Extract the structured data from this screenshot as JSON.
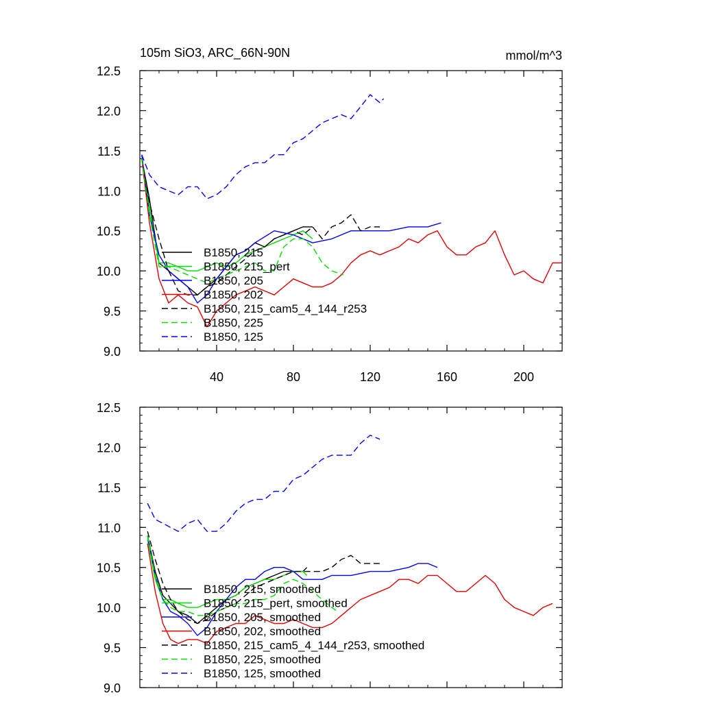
{
  "chart_data": [
    {
      "type": "line",
      "title": "105m SiO3, ARC_66N-90N",
      "units": "mmol/m^3",
      "xlim": [
        0,
        220
      ],
      "ylim": [
        9.0,
        12.5
      ],
      "x_ticks": [
        40,
        80,
        120,
        160,
        200
      ],
      "x_tick_labels": [
        "40",
        "80",
        "120",
        "160",
        "200"
      ],
      "y_ticks": [
        9.0,
        9.5,
        10.0,
        10.5,
        11.0,
        11.5,
        12.0,
        12.5
      ],
      "y_tick_labels": [
        "9.0",
        "9.5",
        "10.0",
        "10.5",
        "11.0",
        "11.5",
        "12.0",
        "12.5"
      ],
      "legend_position": "lower-left",
      "series": [
        {
          "name": "B1850, 215",
          "color": "#000000",
          "dash": "solid",
          "x": [
            1,
            5,
            10,
            15,
            20,
            25,
            30,
            35,
            40,
            45,
            50,
            55,
            60,
            65,
            70,
            75,
            80,
            85,
            90
          ],
          "y": [
            11.4,
            10.9,
            10.1,
            10.0,
            9.9,
            9.8,
            9.7,
            9.8,
            9.9,
            10.05,
            10.2,
            10.25,
            10.35,
            10.3,
            10.4,
            10.45,
            10.5,
            10.55,
            10.55
          ]
        },
        {
          "name": "B1850, 215_pert",
          "color": "#00dd00",
          "dash": "solid",
          "x": [
            1,
            5,
            10,
            15,
            20,
            25,
            30,
            35,
            40,
            45,
            50,
            55,
            60,
            65,
            70,
            75,
            80,
            85,
            90
          ],
          "y": [
            11.4,
            10.8,
            10.1,
            10.1,
            10.05,
            10.0,
            10.0,
            10.05,
            10.1,
            10.05,
            10.1,
            10.2,
            10.25,
            10.3,
            10.35,
            10.4,
            10.45,
            10.5,
            10.4
          ]
        },
        {
          "name": "B1850, 205",
          "color": "#0000ff",
          "dash": "solid",
          "x": [
            1,
            5,
            10,
            15,
            20,
            25,
            30,
            35,
            40,
            45,
            50,
            55,
            60,
            70,
            80,
            90,
            100,
            110,
            120,
            130,
            140,
            150,
            157
          ],
          "y": [
            11.45,
            10.7,
            10.2,
            10.0,
            9.9,
            9.8,
            9.6,
            9.7,
            9.9,
            10.05,
            10.2,
            10.25,
            10.35,
            10.5,
            10.45,
            10.35,
            10.4,
            10.5,
            10.5,
            10.5,
            10.55,
            10.55,
            10.6
          ]
        },
        {
          "name": "B1850, 202",
          "color": "#e00000",
          "dash": "solid",
          "x": [
            1,
            5,
            10,
            15,
            20,
            25,
            30,
            35,
            40,
            45,
            50,
            55,
            60,
            65,
            70,
            75,
            80,
            85,
            90,
            95,
            100,
            105,
            110,
            115,
            120,
            125,
            130,
            135,
            140,
            145,
            150,
            155,
            160,
            165,
            170,
            175,
            180,
            185,
            190,
            195,
            200,
            205,
            210,
            215,
            220
          ],
          "y": [
            11.4,
            10.6,
            9.9,
            9.6,
            9.7,
            9.6,
            9.55,
            9.3,
            9.5,
            9.6,
            9.7,
            9.75,
            9.8,
            9.75,
            9.7,
            9.8,
            9.9,
            9.85,
            9.8,
            9.8,
            9.85,
            9.95,
            10.1,
            10.2,
            10.25,
            10.2,
            10.25,
            10.3,
            10.4,
            10.35,
            10.45,
            10.5,
            10.3,
            10.2,
            10.2,
            10.3,
            10.35,
            10.5,
            10.2,
            9.95,
            10.0,
            9.9,
            9.85,
            10.1,
            10.1
          ]
        },
        {
          "name": "B1850, 215_cam5_4_144_r253",
          "color": "#000000",
          "dash": "dashed",
          "x": [
            1,
            5,
            10,
            15,
            20,
            25,
            30,
            35,
            40,
            45,
            50,
            55,
            60,
            65,
            70,
            75,
            80,
            85,
            90,
            95,
            100,
            105,
            110,
            115,
            120,
            125
          ],
          "y": [
            11.4,
            10.85,
            10.4,
            10.0,
            9.75,
            9.7,
            9.7,
            9.8,
            9.85,
            9.95,
            10.05,
            10.15,
            10.25,
            10.3,
            10.4,
            10.45,
            10.5,
            10.45,
            10.55,
            10.4,
            10.55,
            10.6,
            10.7,
            10.5,
            10.55,
            10.55
          ]
        },
        {
          "name": "B1850, 225",
          "color": "#00dd00",
          "dash": "dashed",
          "x": [
            1,
            5,
            10,
            15,
            20,
            25,
            30,
            35,
            40,
            45,
            50,
            55,
            60,
            65,
            70,
            75,
            80,
            85,
            90,
            95,
            100,
            106
          ],
          "y": [
            11.4,
            10.7,
            10.05,
            10.05,
            10.0,
            9.95,
            9.9,
            9.85,
            9.9,
            9.95,
            10.0,
            10.05,
            10.1,
            10.0,
            10.0,
            10.3,
            10.4,
            10.4,
            10.3,
            10.1,
            10.0,
            9.95
          ]
        },
        {
          "name": "B1850, 125",
          "color": "#0000ff",
          "dash": "dashed",
          "x": [
            1,
            5,
            10,
            15,
            20,
            25,
            30,
            35,
            40,
            45,
            50,
            55,
            60,
            65,
            70,
            75,
            80,
            85,
            90,
            95,
            100,
            105,
            110,
            115,
            120,
            125,
            127
          ],
          "y": [
            11.45,
            11.2,
            11.05,
            11.0,
            10.95,
            11.05,
            11.05,
            10.9,
            10.95,
            11.05,
            11.2,
            11.3,
            11.35,
            11.35,
            11.45,
            11.45,
            11.6,
            11.65,
            11.75,
            11.85,
            11.9,
            11.95,
            11.9,
            12.05,
            12.2,
            12.1,
            12.15
          ]
        }
      ]
    },
    {
      "type": "line",
      "title": "",
      "xlim": [
        0,
        220
      ],
      "ylim": [
        9.0,
        12.5
      ],
      "x_ticks": [
        40,
        80,
        120,
        160,
        200
      ],
      "y_ticks": [
        9.0,
        9.5,
        10.0,
        10.5,
        11.0,
        11.5,
        12.0,
        12.5
      ],
      "y_tick_labels": [
        "9.0",
        "9.5",
        "10.0",
        "10.5",
        "11.0",
        "11.5",
        "12.0",
        "12.5"
      ],
      "legend_position": "lower-left",
      "series": [
        {
          "name": "B1850, 215, smoothed",
          "color": "#000000",
          "dash": "solid",
          "x": [
            4,
            8,
            12,
            16,
            20,
            25,
            30,
            35,
            40,
            45,
            50,
            55,
            60,
            65,
            70,
            75,
            80,
            85,
            87
          ],
          "y": [
            10.9,
            10.45,
            10.15,
            10.05,
            9.95,
            9.9,
            9.8,
            9.9,
            10.0,
            10.1,
            10.15,
            10.25,
            10.3,
            10.35,
            10.4,
            10.45,
            10.45,
            10.45,
            10.5
          ]
        },
        {
          "name": "B1850, 215_pert, smoothed",
          "color": "#00dd00",
          "dash": "solid",
          "x": [
            4,
            8,
            12,
            16,
            20,
            25,
            30,
            35,
            40,
            45,
            50,
            55,
            60,
            65,
            70,
            75,
            80,
            85,
            87
          ],
          "y": [
            10.85,
            10.35,
            10.1,
            10.1,
            10.05,
            10.0,
            10.0,
            10.05,
            10.1,
            10.1,
            10.15,
            10.25,
            10.3,
            10.35,
            10.35,
            10.4,
            10.45,
            10.45,
            10.4
          ]
        },
        {
          "name": "B1850, 205, smoothed",
          "color": "#0000ff",
          "dash": "solid",
          "x": [
            4,
            8,
            12,
            16,
            20,
            25,
            30,
            35,
            40,
            45,
            50,
            55,
            60,
            65,
            70,
            75,
            80,
            85,
            90,
            95,
            100,
            110,
            120,
            130,
            140,
            145,
            150,
            155
          ],
          "y": [
            10.9,
            10.4,
            10.1,
            9.95,
            9.9,
            9.8,
            9.65,
            9.75,
            9.95,
            10.1,
            10.25,
            10.35,
            10.35,
            10.45,
            10.5,
            10.5,
            10.45,
            10.35,
            10.35,
            10.35,
            10.4,
            10.4,
            10.45,
            10.45,
            10.5,
            10.55,
            10.55,
            10.5
          ]
        },
        {
          "name": "B1850, 202, smoothed",
          "color": "#e00000",
          "dash": "solid",
          "x": [
            4,
            8,
            12,
            16,
            20,
            25,
            30,
            35,
            40,
            45,
            50,
            55,
            60,
            65,
            70,
            75,
            80,
            85,
            90,
            95,
            100,
            105,
            110,
            115,
            120,
            125,
            130,
            135,
            140,
            145,
            150,
            155,
            160,
            165,
            170,
            175,
            180,
            185,
            190,
            195,
            200,
            205,
            210,
            215
          ],
          "y": [
            10.8,
            10.2,
            9.8,
            9.6,
            9.55,
            9.6,
            9.6,
            9.55,
            9.7,
            9.75,
            9.8,
            9.8,
            9.9,
            9.85,
            9.8,
            9.8,
            9.85,
            9.8,
            9.75,
            9.75,
            9.8,
            9.9,
            10.0,
            10.1,
            10.15,
            10.2,
            10.25,
            10.35,
            10.35,
            10.3,
            10.4,
            10.4,
            10.3,
            10.2,
            10.2,
            10.3,
            10.4,
            10.3,
            10.1,
            10.0,
            9.95,
            9.9,
            10.0,
            10.05
          ]
        },
        {
          "name": "B1850, 215_cam5_4_144_r253, smoothed",
          "color": "#000000",
          "dash": "dashed",
          "x": [
            4,
            8,
            12,
            16,
            20,
            25,
            30,
            35,
            40,
            45,
            50,
            55,
            60,
            65,
            70,
            75,
            80,
            85,
            90,
            95,
            100,
            105,
            110,
            115,
            120,
            125
          ],
          "y": [
            10.95,
            10.6,
            10.3,
            10.1,
            9.95,
            9.85,
            9.8,
            9.85,
            9.95,
            10.0,
            10.05,
            10.15,
            10.25,
            10.3,
            10.35,
            10.4,
            10.45,
            10.45,
            10.45,
            10.45,
            10.5,
            10.6,
            10.65,
            10.55,
            10.55,
            10.55
          ]
        },
        {
          "name": "B1850, 225, smoothed",
          "color": "#00dd00",
          "dash": "dashed",
          "x": [
            4,
            8,
            12,
            16,
            20,
            25,
            30,
            35,
            40,
            45,
            50,
            55,
            60,
            65,
            70,
            75,
            80,
            85,
            90,
            95,
            100,
            103
          ],
          "y": [
            10.9,
            10.4,
            10.1,
            10.0,
            9.95,
            9.95,
            9.9,
            9.9,
            9.95,
            10.0,
            10.05,
            10.05,
            10.1,
            10.1,
            10.15,
            10.3,
            10.35,
            10.3,
            10.2,
            10.1,
            10.0,
            9.95
          ]
        },
        {
          "name": "B1850, 125, smoothed",
          "color": "#0000ff",
          "dash": "dashed",
          "x": [
            4,
            8,
            12,
            16,
            20,
            25,
            30,
            35,
            40,
            45,
            50,
            55,
            60,
            65,
            70,
            75,
            80,
            85,
            90,
            95,
            100,
            105,
            110,
            115,
            120,
            125
          ],
          "y": [
            11.3,
            11.1,
            11.05,
            11.0,
            10.95,
            11.05,
            11.1,
            10.95,
            10.95,
            11.05,
            11.2,
            11.3,
            11.35,
            11.35,
            11.45,
            11.45,
            11.6,
            11.65,
            11.75,
            11.85,
            11.9,
            11.9,
            11.9,
            12.05,
            12.15,
            12.1
          ]
        }
      ]
    }
  ]
}
